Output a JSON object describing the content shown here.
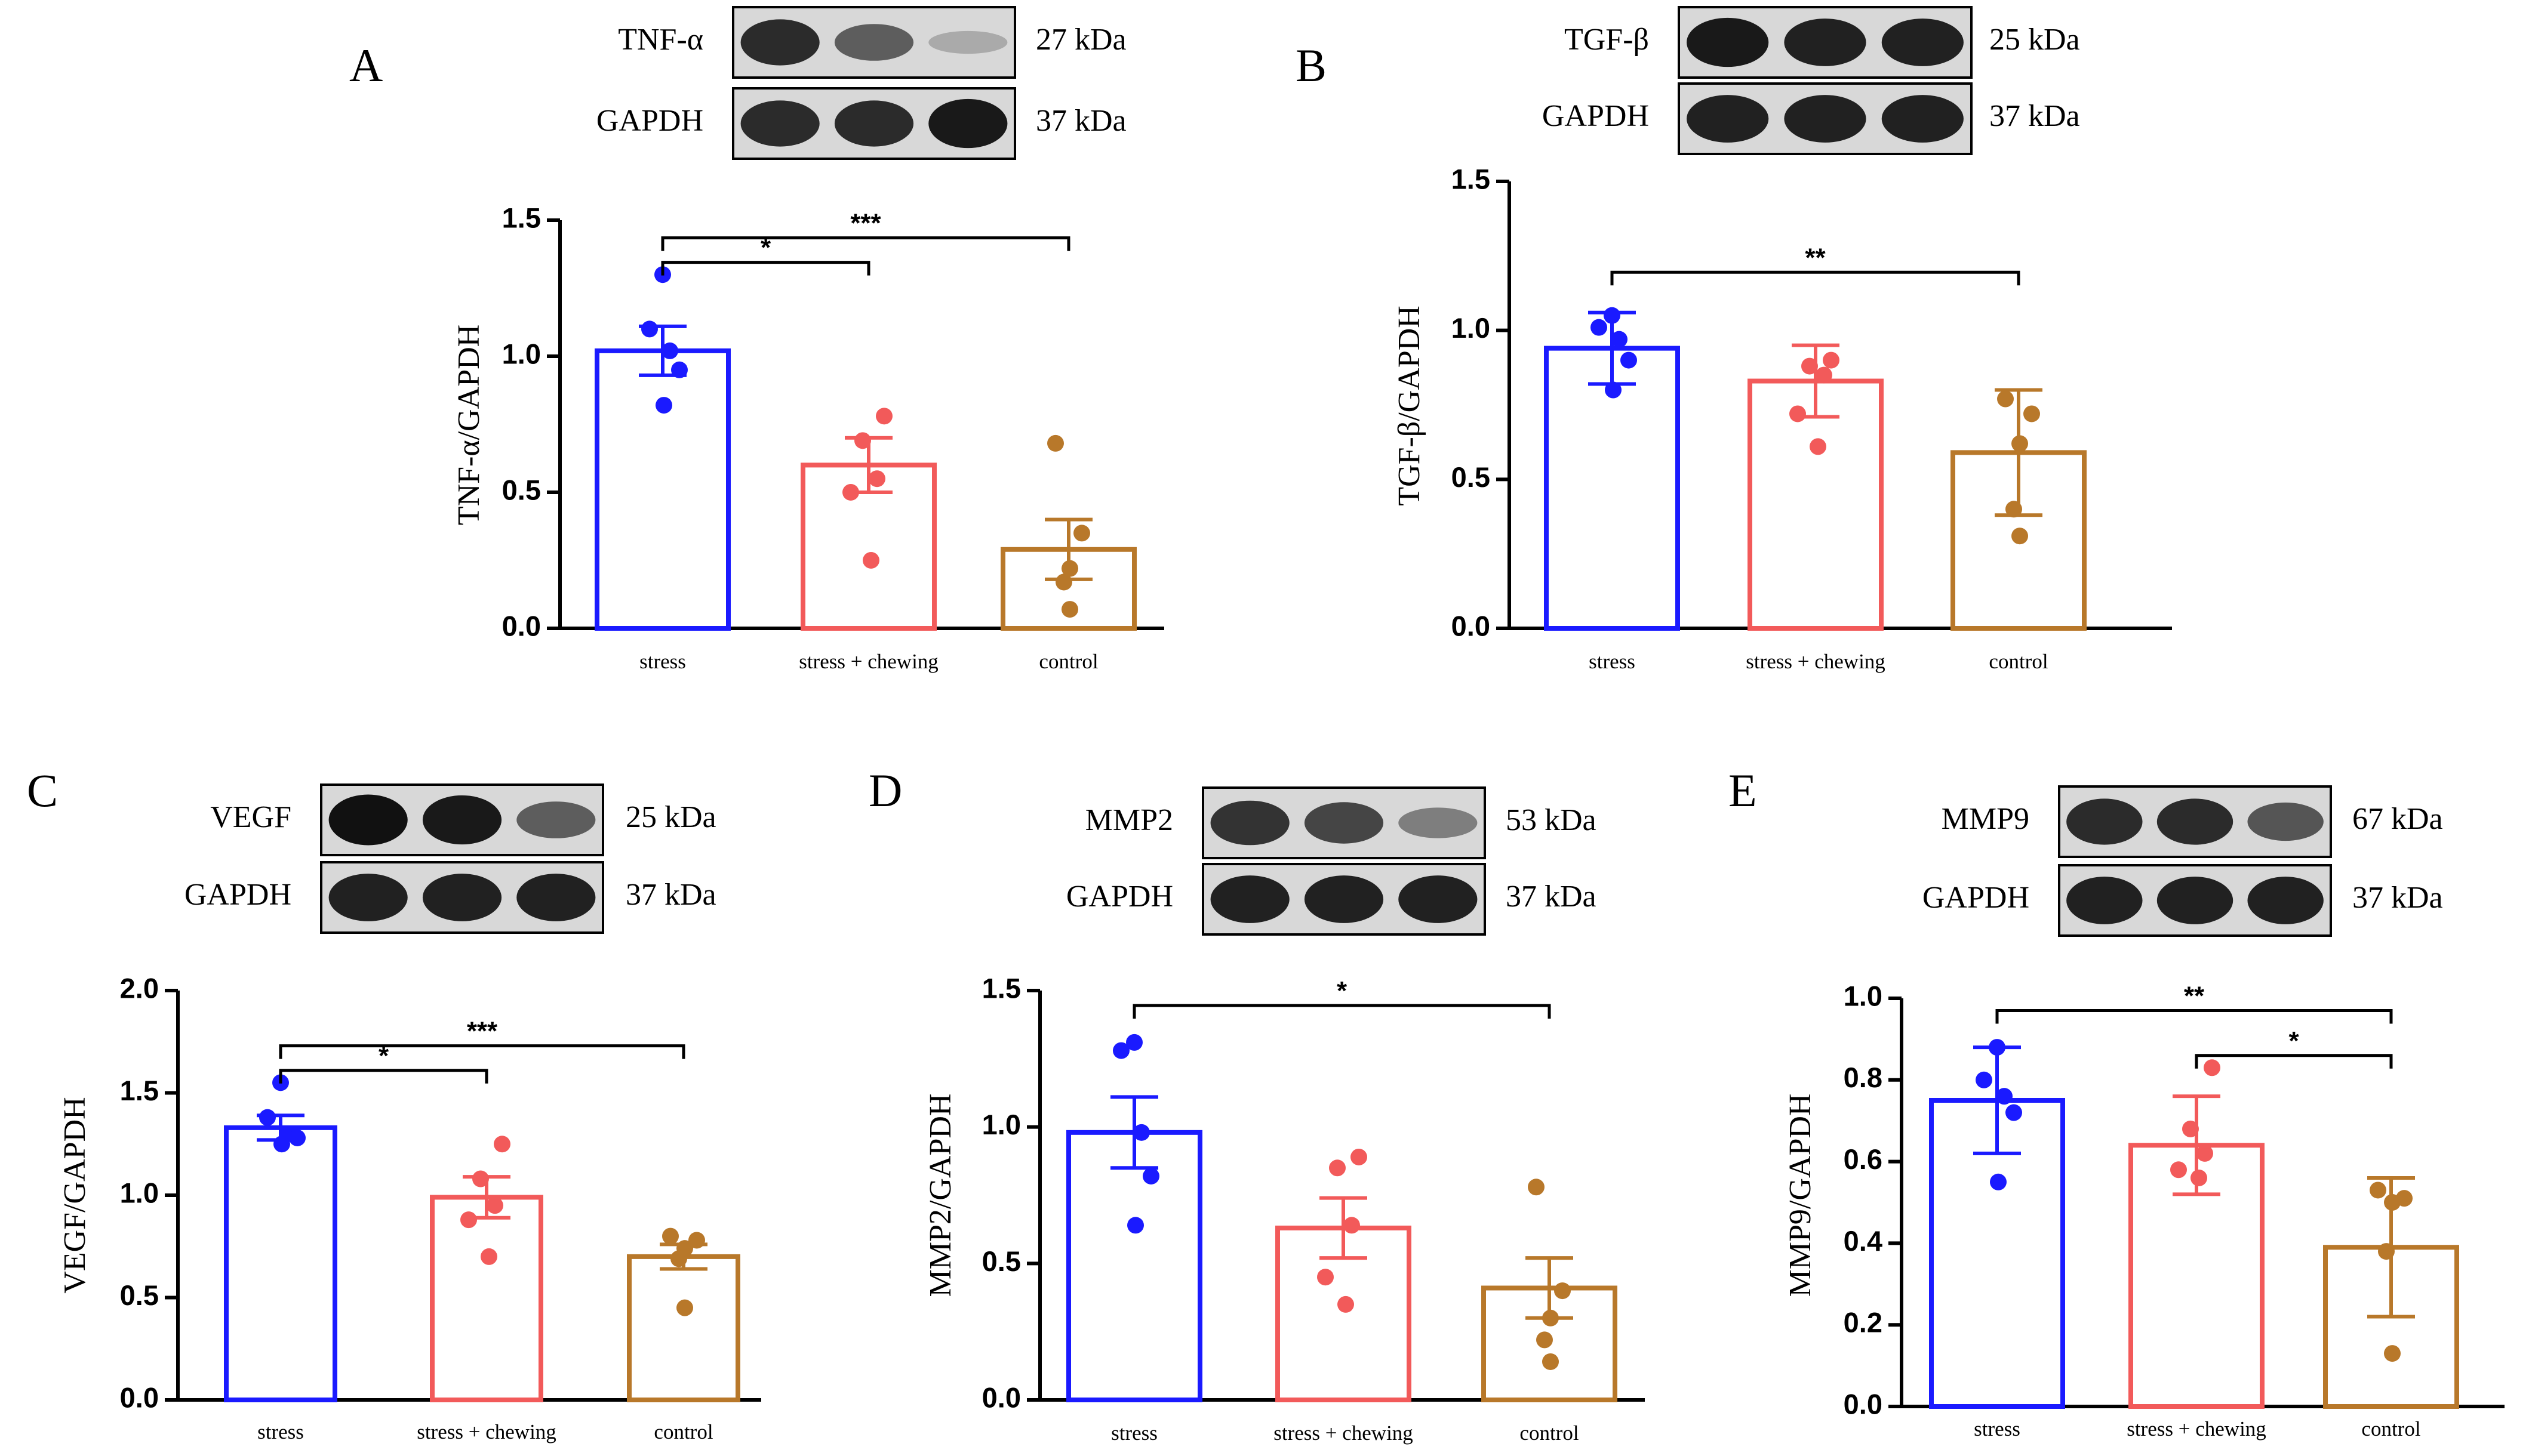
{
  "colors": {
    "stress": "#1a1aff",
    "stress_chewing": "#f25a5a",
    "control": "#b8782a"
  },
  "chart_data": [
    {
      "type": "bar",
      "panel": "A",
      "ylabel": "TNF-α/GAPDH",
      "ylim": [
        0,
        1.5
      ],
      "yticks": [
        "0.0",
        "0.5",
        "1.0",
        "1.5"
      ],
      "categories": [
        "stress",
        "stress + chewing",
        "control"
      ],
      "values": [
        1.02,
        0.6,
        0.29
      ],
      "errors": [
        0.09,
        0.1,
        0.11
      ],
      "points": [
        [
          1.3,
          1.1,
          1.02,
          0.95,
          0.82
        ],
        [
          0.78,
          0.69,
          0.55,
          0.5,
          0.25
        ],
        [
          0.68,
          0.35,
          0.22,
          0.17,
          0.07
        ]
      ],
      "blots": [
        {
          "label": "TNF-α",
          "kda": "27 kDa",
          "bands": [
            0.85,
            0.55,
            0.1
          ]
        },
        {
          "label": "GAPDH",
          "kda": "37 kDa",
          "bands": [
            0.85,
            0.85,
            0.95
          ]
        }
      ],
      "significance": [
        {
          "from": 0,
          "to": 1,
          "label": "*"
        },
        {
          "from": 0,
          "to": 2,
          "label": "***"
        }
      ]
    },
    {
      "type": "bar",
      "panel": "B",
      "ylabel": "TGF-β/GAPDH",
      "ylim": [
        0,
        1.5
      ],
      "yticks": [
        "0.0",
        "0.5",
        "1.0",
        "1.5"
      ],
      "categories": [
        "stress",
        "stress + chewing",
        "control"
      ],
      "values": [
        0.94,
        0.83,
        0.59
      ],
      "errors": [
        0.12,
        0.12,
        0.21
      ],
      "points": [
        [
          1.05,
          1.01,
          0.97,
          0.9,
          0.8
        ],
        [
          0.9,
          0.88,
          0.85,
          0.72,
          0.61
        ],
        [
          0.77,
          0.72,
          0.62,
          0.4,
          0.31
        ]
      ],
      "blots": [
        {
          "label": "TGF-β",
          "kda": "25 kDa",
          "bands": [
            0.95,
            0.9,
            0.9
          ]
        },
        {
          "label": "GAPDH",
          "kda": "37 kDa",
          "bands": [
            0.9,
            0.9,
            0.9
          ]
        }
      ],
      "significance": [
        {
          "from": 0,
          "to": 2,
          "label": "**"
        }
      ]
    },
    {
      "type": "bar",
      "panel": "C",
      "ylabel": "VEGF/GAPDH",
      "ylim": [
        0,
        2.0
      ],
      "yticks": [
        "0.0",
        "0.5",
        "1.0",
        "1.5",
        "2.0"
      ],
      "categories": [
        "stress",
        "stress + chewing",
        "control"
      ],
      "values": [
        1.33,
        0.99,
        0.7
      ],
      "errors": [
        0.06,
        0.1,
        0.06
      ],
      "points": [
        [
          1.55,
          1.38,
          1.3,
          1.28,
          1.25
        ],
        [
          1.25,
          1.08,
          0.95,
          0.88,
          0.7
        ],
        [
          0.8,
          0.78,
          0.74,
          0.69,
          0.45
        ]
      ],
      "blots": [
        {
          "label": "VEGF",
          "kda": "25 kDa",
          "bands": [
            1.0,
            0.95,
            0.55
          ]
        },
        {
          "label": "GAPDH",
          "kda": "37 kDa",
          "bands": [
            0.9,
            0.9,
            0.9
          ]
        }
      ],
      "significance": [
        {
          "from": 0,
          "to": 1,
          "label": "*"
        },
        {
          "from": 0,
          "to": 2,
          "label": "***"
        }
      ]
    },
    {
      "type": "bar",
      "panel": "D",
      "ylabel": "MMP2/GAPDH",
      "ylim": [
        0,
        1.5
      ],
      "yticks": [
        "0.0",
        "0.5",
        "1.0",
        "1.5"
      ],
      "categories": [
        "stress",
        "stress + chewing",
        "control"
      ],
      "values": [
        0.98,
        0.63,
        0.41
      ],
      "errors": [
        0.13,
        0.11,
        0.11
      ],
      "points": [
        [
          1.31,
          1.28,
          0.98,
          0.82,
          0.64
        ],
        [
          0.89,
          0.85,
          0.64,
          0.45,
          0.35
        ],
        [
          0.78,
          0.4,
          0.3,
          0.22,
          0.14
        ]
      ],
      "blots": [
        {
          "label": "MMP2",
          "kda": "53 kDa",
          "bands": [
            0.8,
            0.7,
            0.35
          ]
        },
        {
          "label": "GAPDH",
          "kda": "37 kDa",
          "bands": [
            0.9,
            0.9,
            0.9
          ]
        }
      ],
      "significance": [
        {
          "from": 0,
          "to": 2,
          "label": "*"
        }
      ]
    },
    {
      "type": "bar",
      "panel": "E",
      "ylabel": "MMP9/GAPDH",
      "ylim": [
        0,
        1.0
      ],
      "yticks": [
        "0.0",
        "0.2",
        "0.4",
        "0.6",
        "0.8",
        "1.0"
      ],
      "categories": [
        "stress",
        "stress + chewing",
        "control"
      ],
      "values": [
        0.75,
        0.64,
        0.39
      ],
      "errors": [
        0.13,
        0.12,
        0.17
      ],
      "points": [
        [
          0.88,
          0.8,
          0.76,
          0.72,
          0.55
        ],
        [
          0.83,
          0.68,
          0.62,
          0.58,
          0.56
        ],
        [
          0.53,
          0.51,
          0.5,
          0.38,
          0.13
        ]
      ],
      "blots": [
        {
          "label": "MMP9",
          "kda": "67 kDa",
          "bands": [
            0.85,
            0.85,
            0.6
          ]
        },
        {
          "label": "GAPDH",
          "kda": "37 kDa",
          "bands": [
            0.9,
            0.9,
            0.9
          ]
        }
      ],
      "significance": [
        {
          "from": 0,
          "to": 2,
          "label": "**"
        },
        {
          "from": 1,
          "to": 2,
          "label": "*"
        }
      ]
    }
  ]
}
